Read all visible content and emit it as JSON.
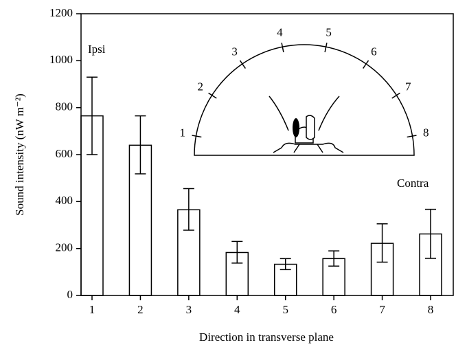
{
  "chart_data": {
    "type": "bar",
    "x_label": "Direction in transverse plane",
    "y_label": "Sound intensity (nW m⁻²)",
    "categories": [
      "1",
      "2",
      "3",
      "4",
      "5",
      "6",
      "7",
      "8"
    ],
    "values": [
      765,
      640,
      365,
      183,
      133,
      157,
      222,
      262
    ],
    "error_low": [
      600,
      518,
      278,
      138,
      110,
      125,
      142,
      158
    ],
    "error_high": [
      930,
      765,
      455,
      230,
      157,
      190,
      305,
      367
    ],
    "color": "#ffffff",
    "ylim": [
      0,
      1200
    ],
    "yticks": [
      0,
      200,
      400,
      600,
      800,
      1000,
      1200
    ],
    "annotations": [
      "Ipsi",
      "Contra"
    ]
  }
}
